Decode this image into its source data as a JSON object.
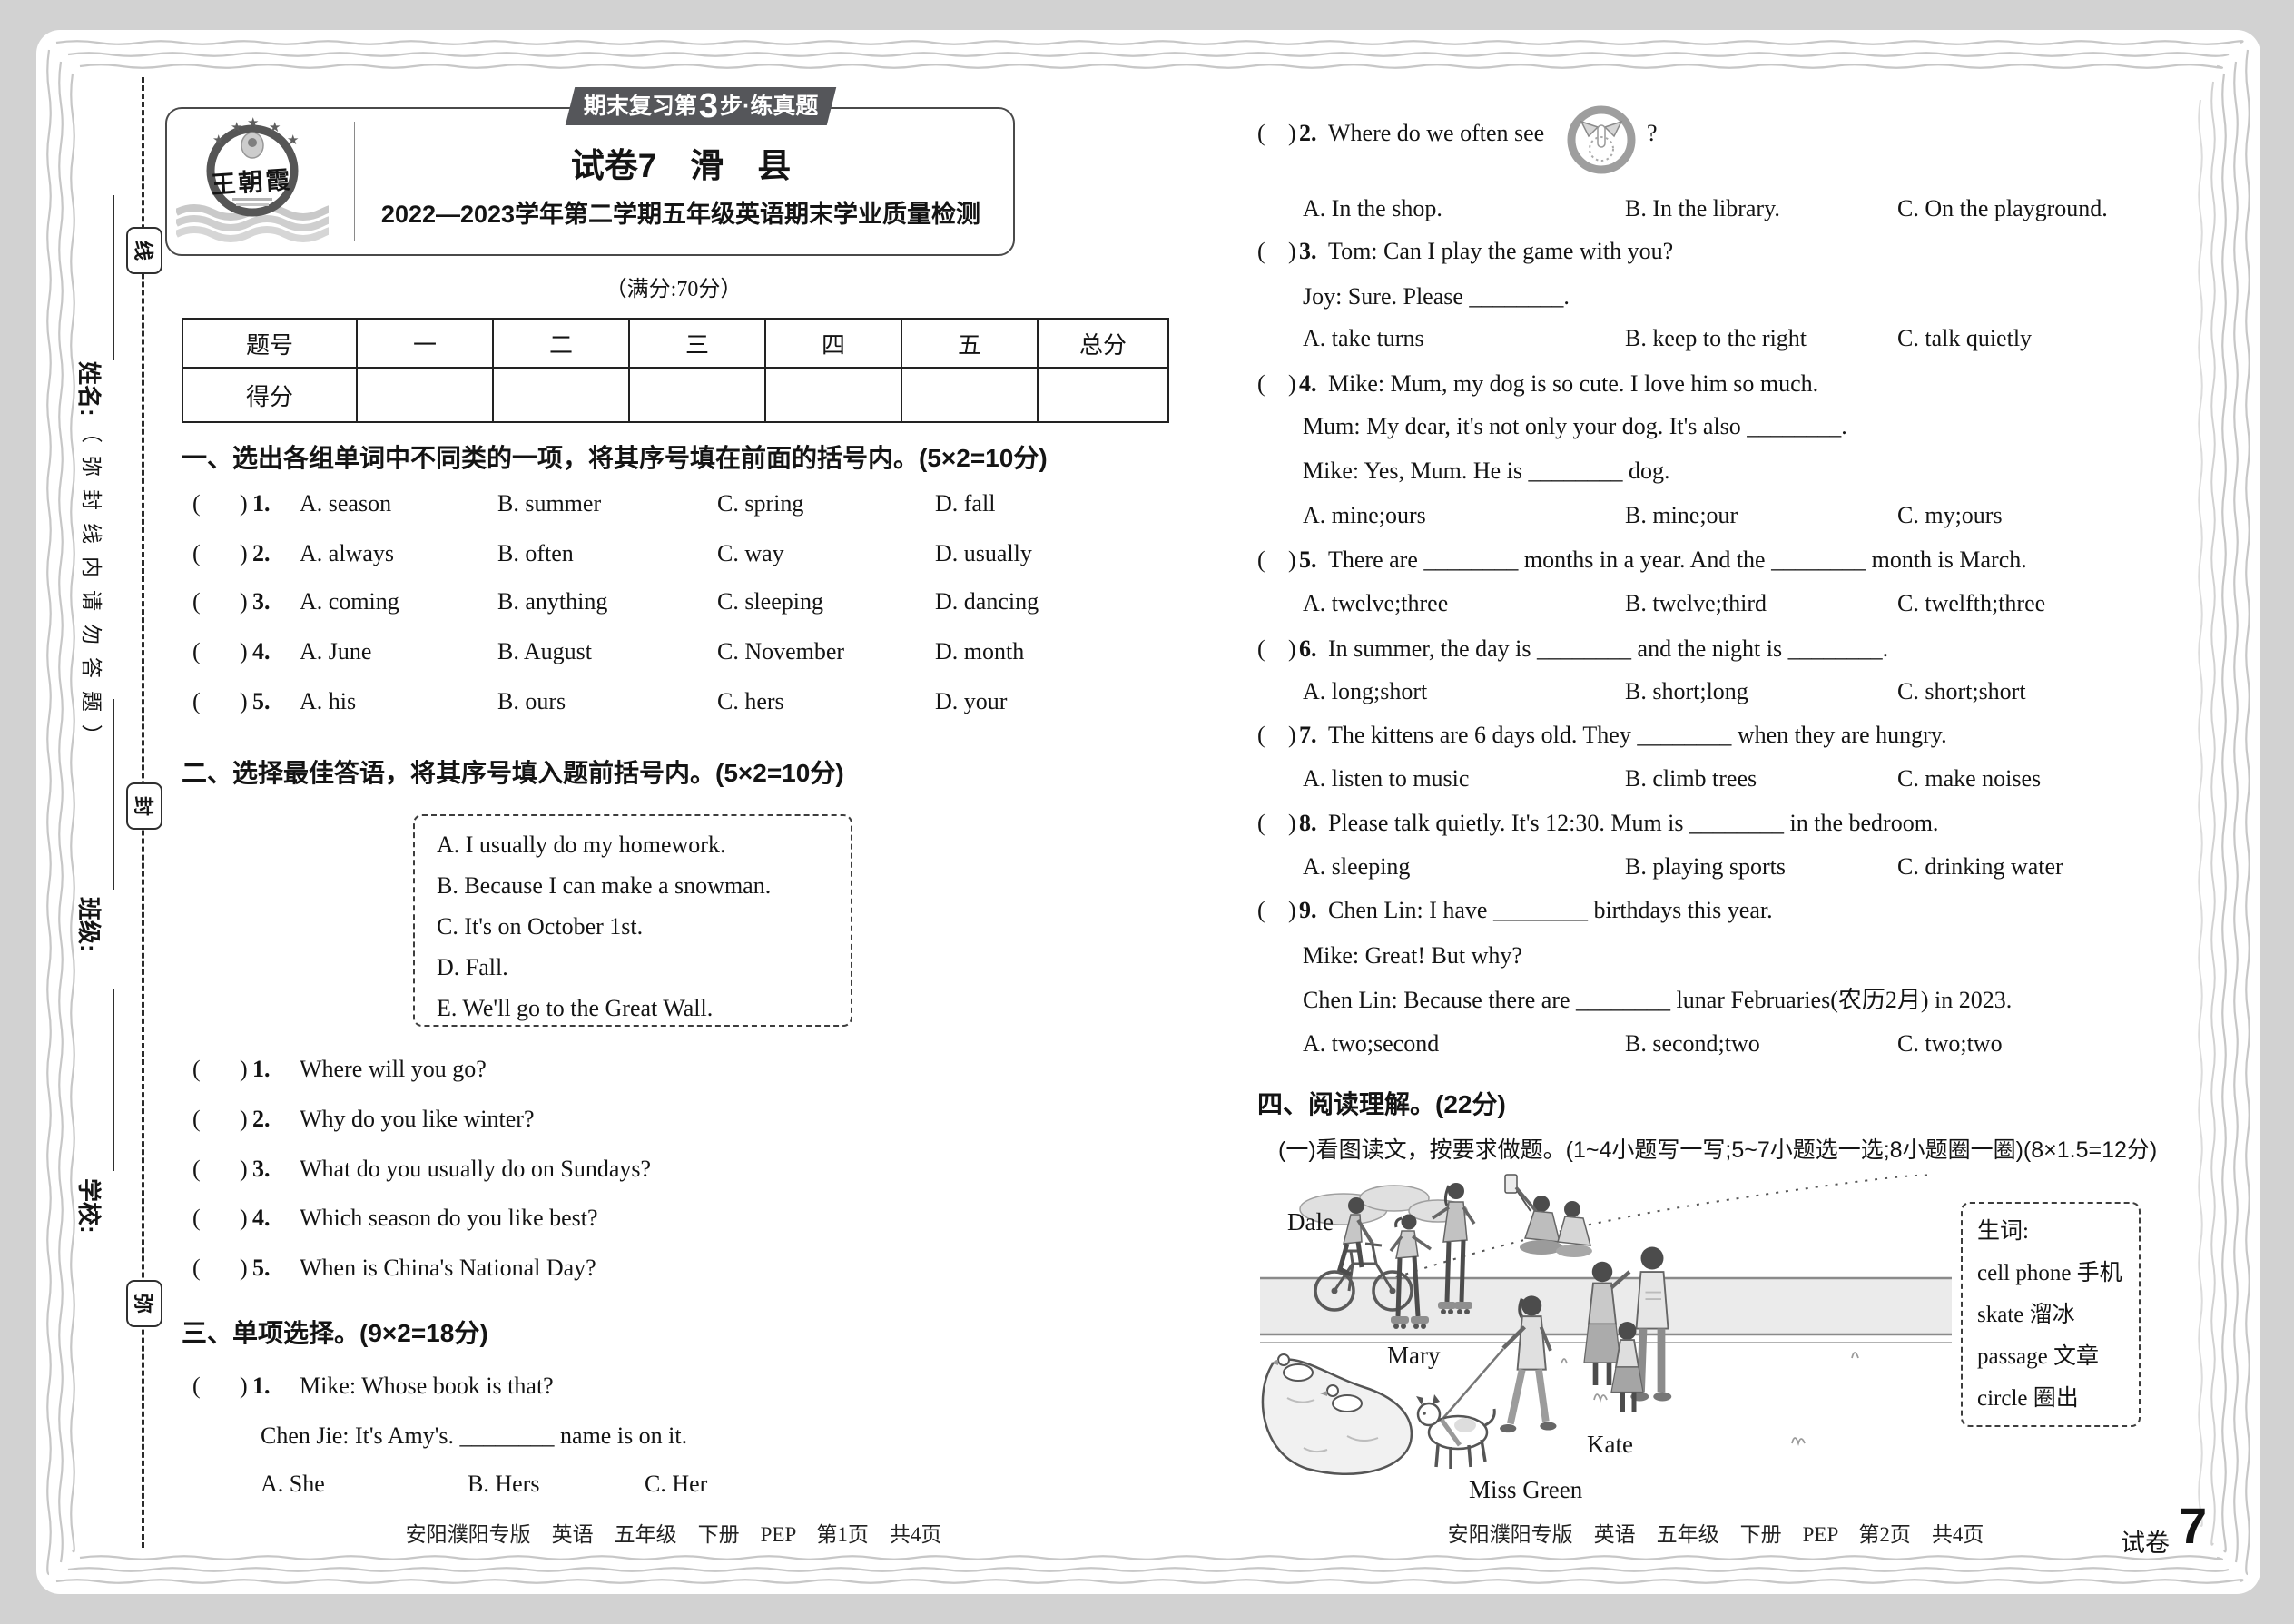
{
  "header": {
    "badge_pre": "期末复习第",
    "badge_num": "3",
    "badge_post": "步·练真题",
    "logo_name": "王朝霞",
    "title": "试卷7　滑　县",
    "subtitle": "2022—2023学年第二学期五年级英语期末学业质量检测",
    "full_score": "（满分:70分）"
  },
  "score_table": {
    "headers": [
      "题号",
      "一",
      "二",
      "三",
      "四",
      "五",
      "总分"
    ],
    "score_label": "得分"
  },
  "sidebar": {
    "name_label": "姓名:",
    "class_label": "班级:",
    "school_label": "学校:",
    "seal_note": "（弥封线内请勿答题）",
    "seal1": "线",
    "seal2": "封",
    "seal3": "弥"
  },
  "s1": {
    "title": "一、选出各组单词中不同类的一项，将其序号填在前面的括号内。(5×2=10分)",
    "items": [
      {
        "n": "1.",
        "a": "A. season",
        "b": "B. summer",
        "c": "C. spring",
        "d": "D. fall"
      },
      {
        "n": "2.",
        "a": "A. always",
        "b": "B. often",
        "c": "C. way",
        "d": "D. usually"
      },
      {
        "n": "3.",
        "a": "A. coming",
        "b": "B. anything",
        "c": "C. sleeping",
        "d": "D. dancing"
      },
      {
        "n": "4.",
        "a": "A. June",
        "b": "B. August",
        "c": "C. November",
        "d": "D. month"
      },
      {
        "n": "5.",
        "a": "A. his",
        "b": "B. ours",
        "c": "C. hers",
        "d": "D. your"
      }
    ]
  },
  "s2": {
    "title": "二、选择最佳答语，将其序号填入题前括号内。(5×2=10分)",
    "box": [
      "A. I usually do my homework.",
      "B. Because I can make a snowman.",
      "C. It's on October 1st.",
      "D. Fall.",
      "E. We'll go to the Great Wall."
    ],
    "qs": [
      {
        "n": "1.",
        "t": "Where will you go?"
      },
      {
        "n": "2.",
        "t": "Why do you like winter?"
      },
      {
        "n": "3.",
        "t": "What do you usually do on Sundays?"
      },
      {
        "n": "4.",
        "t": "Which season do you like best?"
      },
      {
        "n": "5.",
        "t": "When is China's National Day?"
      }
    ]
  },
  "s3": {
    "title": "三、单项选择。(9×2=18分)",
    "q1": {
      "n": "1.",
      "l1": "Mike: Whose book is that?",
      "l2": "Chen Jie: It's Amy's. ________ name is on it.",
      "a": "A. She",
      "b": "B. Hers",
      "c": "C. Her"
    },
    "q2": {
      "n": "2.",
      "pre": "Where do we often see",
      "post": "?",
      "a": "A. In the shop.",
      "b": "B. In the library.",
      "c": "C. On the playground."
    },
    "q3": {
      "n": "3.",
      "l1": "Tom: Can I play the game with you?",
      "l2": "Joy: Sure. Please ________.",
      "a": "A. take turns",
      "b": "B. keep to the right",
      "c": "C. talk quietly"
    },
    "q4": {
      "n": "4.",
      "l1": "Mike: Mum, my dog is so cute. I love him so much.",
      "l2": "Mum: My dear, it's not only your dog. It's also ________.",
      "l3": "Mike: Yes, Mum. He is ________ dog.",
      "a": "A. mine;ours",
      "b": "B. mine;our",
      "c": "C. my;ours"
    },
    "q5": {
      "n": "5.",
      "l1": "There are ________ months in a year. And the ________ month is March.",
      "a": "A. twelve;three",
      "b": "B. twelve;third",
      "c": "C. twelfth;three"
    },
    "q6": {
      "n": "6.",
      "l1": "In summer, the day is ________ and the night is ________.",
      "a": "A. long;short",
      "b": "B. short;long",
      "c": "C. short;short"
    },
    "q7": {
      "n": "7.",
      "l1": "The kittens are 6 days old. They ________ when they are hungry.",
      "a": "A. listen to music",
      "b": "B. climb trees",
      "c": "C. make noises"
    },
    "q8": {
      "n": "8.",
      "l1": "Please talk quietly. It's 12:30. Mum is ________ in the bedroom.",
      "a": "A. sleeping",
      "b": "B. playing sports",
      "c": "C. drinking water"
    },
    "q9": {
      "n": "9.",
      "l1": "Chen Lin: I have ________ birthdays this year.",
      "l2": "Mike: Great! But why?",
      "l3": "Chen Lin: Because there are ________ lunar Februaries(农历2月) in 2023.",
      "a": "A. two;second",
      "b": "B. second;two",
      "c": "C. two;two"
    }
  },
  "s4": {
    "title": "四、阅读理解。(22分)",
    "sub": "(一)看图读文，按要求做题。(1~4小题写一写;5~7小题选一选;8小题圈一圈)(8×1.5=12分)",
    "vocab_title": "生词:",
    "vocab": [
      "cell phone 手机",
      "skate 溜冰",
      "passage 文章",
      "circle 圈出"
    ],
    "labels": {
      "dale": "Dale",
      "mary": "Mary",
      "miss_green": "Miss Green",
      "kate": "Kate"
    }
  },
  "footer": {
    "left": "安阳濮阳专版　英语　五年级　下册　PEP　第1页　共4页",
    "right": "安阳濮阳专版　英语　五年级　下册　PEP　第2页　共4页",
    "corner_label": "试卷",
    "corner_num": "7"
  }
}
